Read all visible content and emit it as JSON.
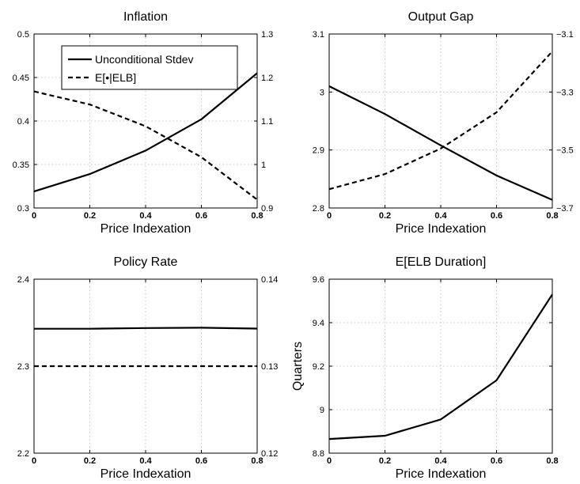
{
  "chart_data": [
    {
      "id": "inflation",
      "type": "line",
      "title": "Inflation",
      "xlabel": "Price Indexation",
      "ylabel": "",
      "x": [
        0,
        0.2,
        0.4,
        0.6,
        0.8
      ],
      "xlim": [
        0,
        0.8
      ],
      "xticks": [
        "0",
        "0.2",
        "0.4",
        "0.6",
        "0.8"
      ],
      "ylim": [
        0.3,
        0.5
      ],
      "yticks": [
        "0.3",
        "0.35",
        "0.4",
        "0.45",
        "0.5"
      ],
      "y2lim": [
        0.9,
        1.3
      ],
      "y2ticks": [
        "0.9",
        "1",
        "1.1",
        "1.2",
        "1.3"
      ],
      "grid": true,
      "legend": {
        "placement": "top-left"
      },
      "series": [
        {
          "name": "Unconditional Stdev",
          "axis": "left",
          "style": "solid",
          "values": [
            0.319,
            0.339,
            0.366,
            0.402,
            0.455
          ]
        },
        {
          "name": "E[•|ELB]",
          "axis": "right",
          "style": "dashed",
          "values": [
            1.168,
            1.138,
            1.088,
            1.017,
            0.919
          ]
        }
      ]
    },
    {
      "id": "output-gap",
      "type": "line",
      "title": "Output Gap",
      "xlabel": "Price Indexation",
      "ylabel": "",
      "x": [
        0,
        0.2,
        0.4,
        0.6,
        0.8
      ],
      "xlim": [
        0,
        0.8
      ],
      "xticks": [
        "0",
        "0.2",
        "0.4",
        "0.6",
        "0.8"
      ],
      "ylim": [
        2.8,
        3.1
      ],
      "yticks": [
        "2.8",
        "2.9",
        "3",
        "3.1"
      ],
      "y2lim": [
        -3.7,
        -3.1
      ],
      "y2ticks": [
        "−3.7",
        "−3.5",
        "−3.3",
        "−3.1"
      ],
      "grid": true,
      "series": [
        {
          "axis": "left",
          "style": "solid",
          "values": [
            3.01,
            2.962,
            2.908,
            2.856,
            2.814
          ]
        },
        {
          "axis": "right",
          "style": "dashed",
          "values": [
            -3.635,
            -3.583,
            -3.495,
            -3.37,
            -3.16
          ]
        }
      ]
    },
    {
      "id": "policy-rate",
      "type": "line",
      "title": "Policy Rate",
      "xlabel": "Price Indexation",
      "ylabel": "",
      "x": [
        0,
        0.2,
        0.4,
        0.6,
        0.8
      ],
      "xlim": [
        0,
        0.8
      ],
      "xticks": [
        "0",
        "0.2",
        "0.4",
        "0.6",
        "0.8"
      ],
      "ylim": [
        2.2,
        2.4
      ],
      "yticks": [
        "2.2",
        "2.3",
        "2.4"
      ],
      "y2lim": [
        0.12,
        0.14
      ],
      "y2ticks": [
        "0.12",
        "0.13",
        "0.14"
      ],
      "grid": true,
      "series": [
        {
          "axis": "left",
          "style": "solid",
          "values": [
            2.343,
            2.343,
            2.3438,
            2.3442,
            2.3432
          ]
        },
        {
          "axis": "right",
          "style": "dashed",
          "values": [
            0.13,
            0.13,
            0.13,
            0.13,
            0.13
          ]
        }
      ]
    },
    {
      "id": "elb-duration",
      "type": "line",
      "title": "E[ELB Duration]",
      "xlabel": "Price Indexation",
      "ylabel": "Quarters",
      "x": [
        0,
        0.2,
        0.4,
        0.6,
        0.8
      ],
      "xlim": [
        0,
        0.8
      ],
      "xticks": [
        "0",
        "0.2",
        "0.4",
        "0.6",
        "0.8"
      ],
      "ylim": [
        8.8,
        9.6
      ],
      "yticks": [
        "8.8",
        "9",
        "9.2",
        "9.4",
        "9.6"
      ],
      "grid": true,
      "series": [
        {
          "axis": "left",
          "style": "solid",
          "values": [
            8.865,
            8.88,
            8.955,
            9.135,
            9.53
          ]
        }
      ]
    }
  ]
}
